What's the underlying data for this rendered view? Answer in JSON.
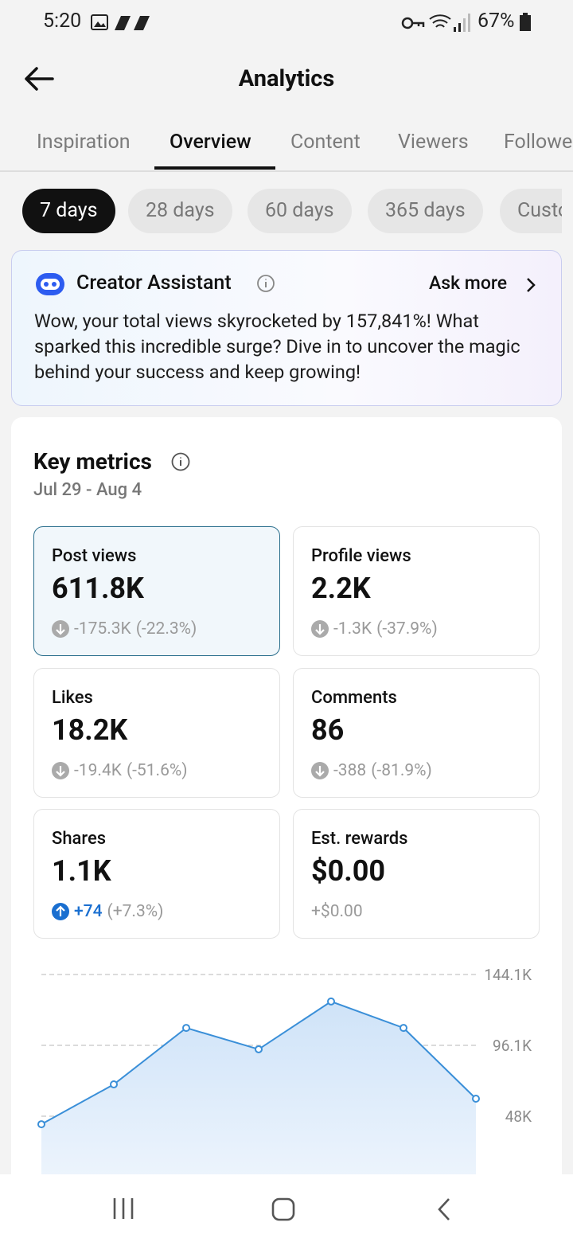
{
  "status_bar": {
    "time": "5:20",
    "battery": "67%"
  },
  "header": {
    "title": "Analytics"
  },
  "tabs": [
    "Inspiration",
    "Overview",
    "Content",
    "Viewers",
    "Followers"
  ],
  "periods": [
    "7 days",
    "28 days",
    "60 days",
    "365 days",
    "Custom"
  ],
  "assistant": {
    "title": "Creator Assistant",
    "action": "Ask more",
    "message": "Wow, your total views skyrocketed by 157,841%! What sparked this incredible surge? Dive in to uncover the magic behind your success and keep growing!"
  },
  "key_metrics": {
    "title": "Key metrics",
    "date_range": "Jul 29 - Aug 4",
    "metrics": [
      {
        "label": "Post views",
        "value": "611.8K",
        "change": "-175.3K",
        "change_pct": "(-22.3%)",
        "trend": "down"
      },
      {
        "label": "Profile views",
        "value": "2.2K",
        "change": "-1.3K",
        "change_pct": "(-37.9%)",
        "trend": "down"
      },
      {
        "label": "Likes",
        "value": "18.2K",
        "change": "-19.4K",
        "change_pct": "(-51.6%)",
        "trend": "down"
      },
      {
        "label": "Comments",
        "value": "86",
        "change": "-388",
        "change_pct": "(-81.9%)",
        "trend": "down"
      },
      {
        "label": "Shares",
        "value": "1.1K",
        "change": "+74",
        "change_pct": "(+7.3%)",
        "trend": "up"
      },
      {
        "label": "Est. rewards",
        "value": "$0.00",
        "change": "+$0.00"
      }
    ]
  },
  "chart_data": {
    "type": "area",
    "categories": [
      null,
      null,
      null,
      null,
      null,
      null,
      null
    ],
    "values": [
      42.6,
      69.6,
      107.9,
      93.4,
      125.8,
      107.9,
      59.9
    ],
    "color": "#3a8fd8",
    "ylim": [
      0,
      144.1
    ],
    "yticks": [
      {
        "value": 48,
        "label": "48K"
      },
      {
        "value": 96.1,
        "label": "96.1K"
      },
      {
        "value": 144.1,
        "label": "144.1K"
      }
    ],
    "grid": true
  }
}
